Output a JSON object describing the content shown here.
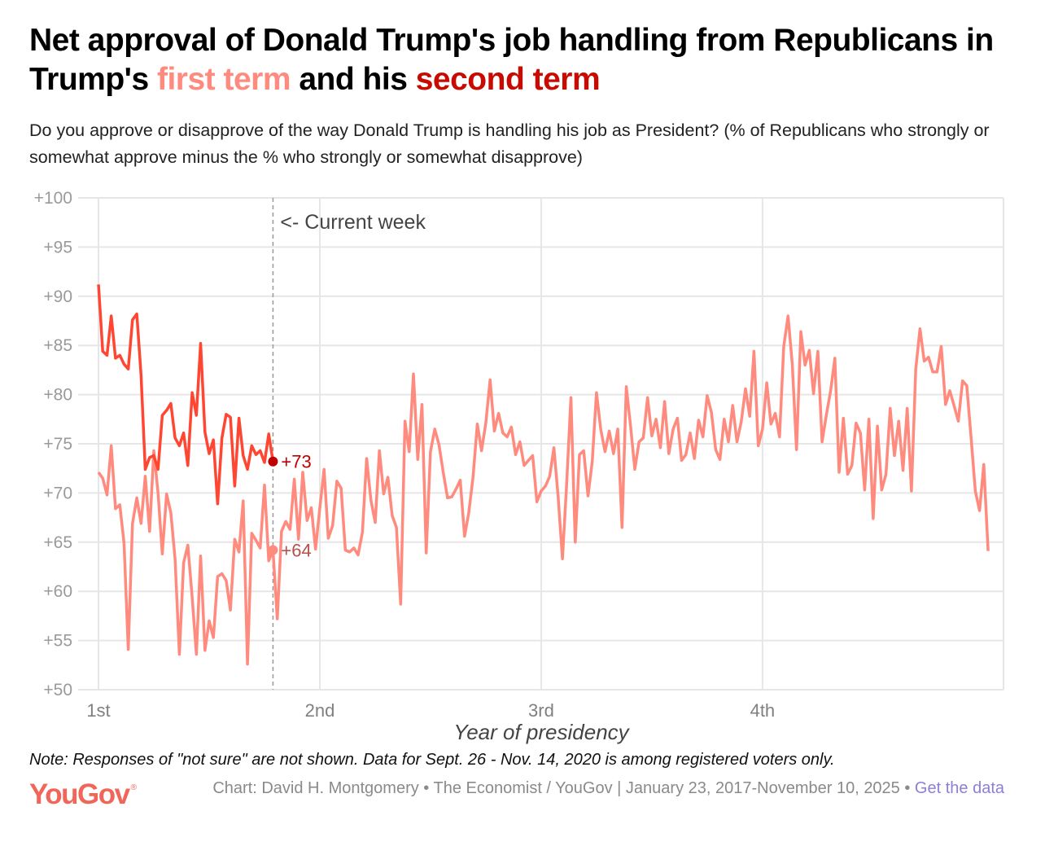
{
  "title": {
    "part1": "Net approval of Donald Trump's job handling from Republicans in Trump's ",
    "first_term": "first term",
    "part2": " and his ",
    "second_term": "second term"
  },
  "subtitle": "Do you approve or disapprove of the way Donald Trump is handling his job as President? (% of Republicans who strongly or somewhat approve minus the % who strongly or somewhat disapprove)",
  "colors": {
    "first_term": "#FF8A7E",
    "second_term": "#FF4632",
    "second_term_label": "#C00000",
    "first_term_label": "#B8504A"
  },
  "chart_data": {
    "type": "line",
    "xlabel": "Year of presidency",
    "ylabel": "",
    "ylim": [
      50,
      100
    ],
    "yticks": [
      "+50",
      "+55",
      "+60",
      "+65",
      "+70",
      "+75",
      "+80",
      "+85",
      "+90",
      "+95",
      "+100"
    ],
    "ytick_values": [
      50,
      55,
      60,
      65,
      70,
      75,
      80,
      85,
      90,
      95,
      100
    ],
    "xunit": "weeks since start of term",
    "xlim": [
      0,
      212.6
    ],
    "xticks": [
      {
        "week": 0,
        "label": "1st"
      },
      {
        "week": 52,
        "label": "2nd"
      },
      {
        "week": 104,
        "label": "3rd"
      },
      {
        "week": 156,
        "label": "4th"
      }
    ],
    "grid": true,
    "annotation": {
      "week": 41,
      "text": "<- Current week"
    },
    "series": [
      {
        "name": "First term",
        "end_label": "+64",
        "label_week": 41,
        "label_value": 64.2,
        "values": [
          72.1,
          71.5,
          69.8,
          74.8,
          68.4,
          68.8,
          64.9,
          54.1,
          66.9,
          69.5,
          66.9,
          71.7,
          66.1,
          74.3,
          70,
          63.8,
          69.9,
          68,
          63.3,
          53.6,
          62.9,
          64.7,
          59.4,
          53.6,
          63.6,
          54,
          57,
          55.3,
          61.5,
          61.8,
          61.1,
          58.1,
          65.3,
          64,
          69.2,
          52.6,
          65.9,
          65.2,
          64.4,
          70.8,
          63.1,
          64.2,
          57.2,
          66.1,
          67.1,
          66.3,
          71.4,
          65.3,
          72.1,
          67.2,
          68.5,
          64.3,
          68.5,
          72.4,
          65.4,
          66.7,
          71.2,
          70.5,
          64.2,
          64,
          64.4,
          63.7,
          66,
          73.5,
          69.3,
          67,
          74.3,
          69.9,
          71.6,
          67.7,
          66.5,
          58.7,
          77.3,
          74.2,
          82.1,
          73.4,
          79,
          63.9,
          74.2,
          76.5,
          74.9,
          72.1,
          69.5,
          69.6,
          70.4,
          71.3,
          65.6,
          68,
          71.6,
          77,
          74.3,
          77.1,
          81.5,
          76.3,
          78.1,
          76.1,
          75.7,
          76.7,
          73.9,
          75.2,
          72.8,
          73.3,
          73.8,
          69.1,
          70.2,
          70.7,
          71.7,
          74.6,
          69.6,
          63.3,
          71,
          79.7,
          65,
          73.9,
          74.3,
          69.7,
          73.2,
          80.2,
          76.5,
          74.2,
          76.3,
          74,
          76.5,
          66.5,
          80.8,
          76.8,
          72.4,
          75.2,
          75.6,
          79.7,
          75.8,
          77.5,
          74.6,
          79.3,
          74,
          76.5,
          77.6,
          73.3,
          73.9,
          76.1,
          73.5,
          77.4,
          75.7,
          79.9,
          78.2,
          74.4,
          73.4,
          77.5,
          75.2,
          78.9,
          75.2,
          77.2,
          80.6,
          77.8,
          84.4,
          74.8,
          76.5,
          81.2,
          77,
          78.1,
          75.7,
          84.9,
          88,
          83.1,
          74.4,
          86.4,
          83,
          84.5,
          80.1,
          84.4,
          75.2,
          77.9,
          80.4,
          83.7,
          72.1,
          77.6,
          71.9,
          72.8,
          77.1,
          76.1,
          70.3,
          77.5,
          67.4,
          76.8,
          70.3,
          71.9,
          78.6,
          73.8,
          77.3,
          72.3,
          78.6,
          70.2,
          82.6,
          86.7,
          83.4,
          83.8,
          82.3,
          82.3,
          84.9,
          79,
          80.4,
          78.9,
          77.3,
          81.4,
          80.9,
          75.6,
          70.2,
          68.2,
          72.9,
          64.1
        ]
      },
      {
        "name": "Second term",
        "end_label": "+73",
        "label_week": 41,
        "label_value": 73.2,
        "values": [
          91.2,
          84.4,
          84,
          88,
          83.7,
          84,
          83.1,
          82.6,
          87.6,
          88.2,
          82,
          72.4,
          73.6,
          73.8,
          72.4,
          77.9,
          78.4,
          79.1,
          75.6,
          74.8,
          76.1,
          72.8,
          80.2,
          77.9,
          85.2,
          76.2,
          74,
          75.4,
          68.9,
          75.6,
          78,
          77.7,
          70.7,
          77.6,
          73.8,
          72.4,
          74.8,
          73.9,
          74.3,
          73.1,
          76,
          73.2
        ]
      }
    ]
  },
  "note": "Note: Responses of \"not sure\" are not shown. Data for Sept. 26 - Nov. 14, 2020 is among registered voters only.",
  "footer": {
    "logo": "YouGov",
    "credit": "Chart: David H. Montgomery • The Economist / YouGov | January 23, 2017-November 10, 2025 • ",
    "link": "Get the data"
  }
}
